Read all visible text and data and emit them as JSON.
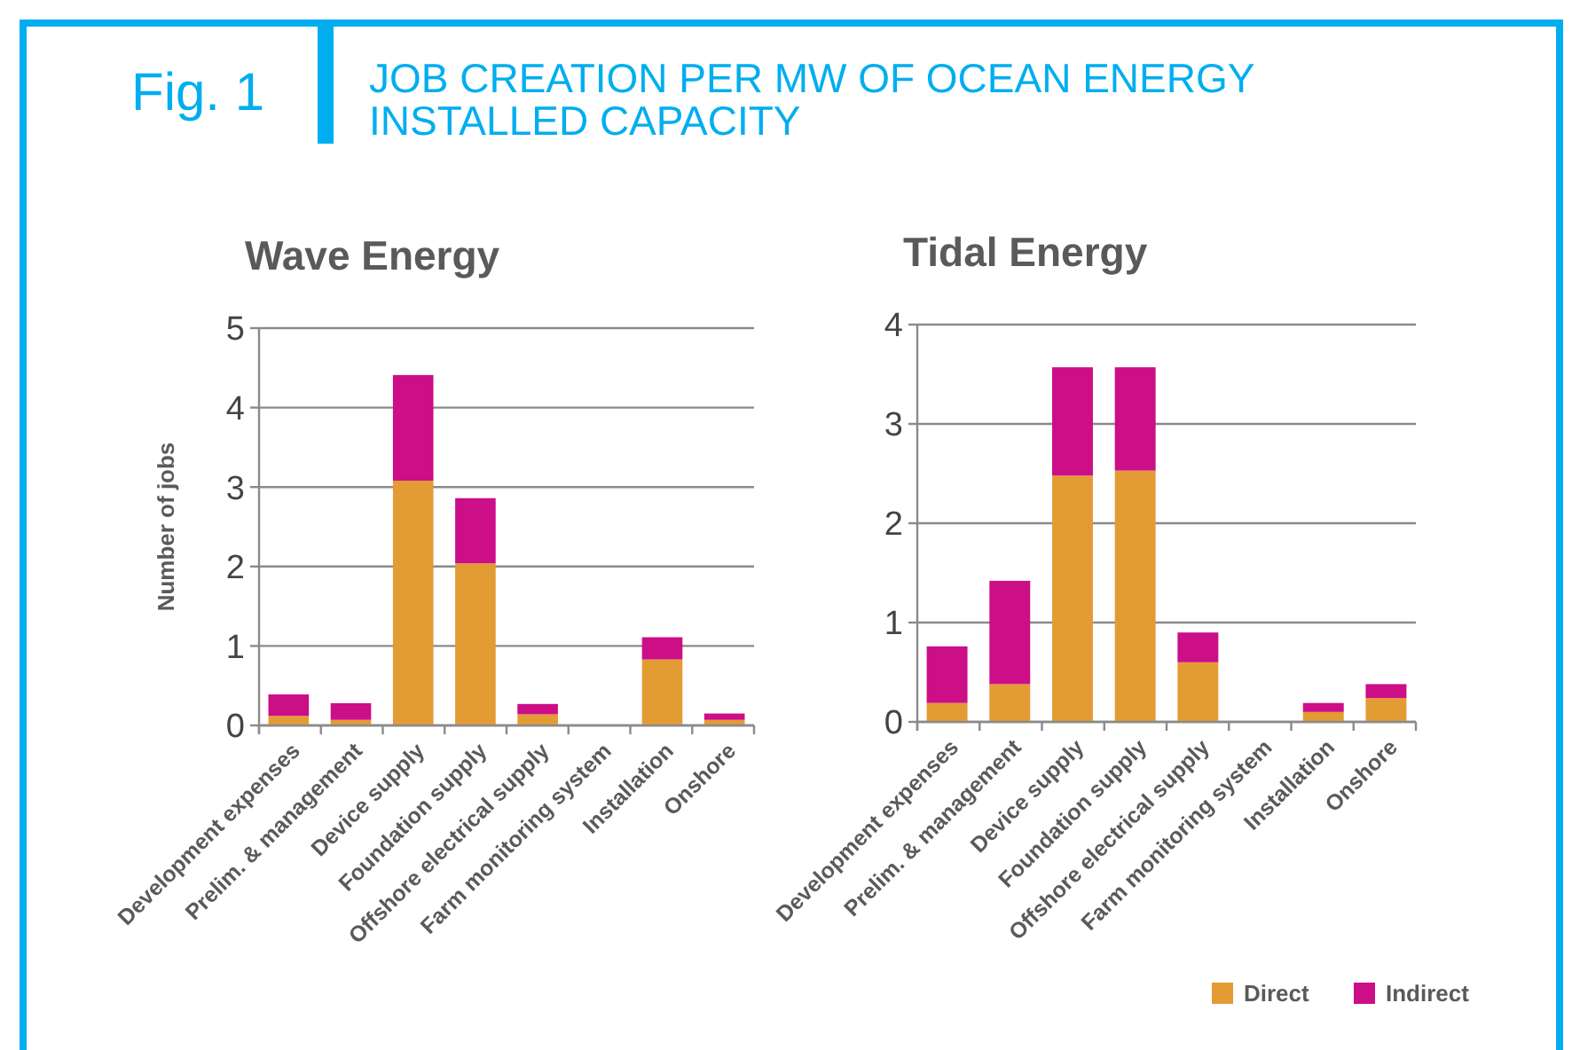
{
  "chart_data": [
    {
      "type": "bar",
      "title": "Wave Energy",
      "ylabel": "Number of jobs",
      "stacked": true,
      "grid": "y",
      "legend": false,
      "annotations": [
        "Fig. 1",
        "JOB CREATION PER MW OF OCEAN ENERGY INSTALLED CAPACITY"
      ],
      "categories": [
        "Development expenses",
        "Prelim. & management",
        "Device supply",
        "Foundation supply",
        "Offshore electrical supply",
        "Farm monitoring system",
        "Installation",
        "Onshore"
      ],
      "ylim": [
        0,
        5
      ],
      "yticks": [
        0,
        1,
        2,
        3,
        4,
        5
      ],
      "series": [
        {
          "color": "#e39b33",
          "values": [
            0.12,
            0.07,
            3.08,
            2.04,
            0.14,
            0,
            0.83,
            0.07
          ]
        },
        {
          "color": "#cc0e87",
          "values": [
            0.27,
            0.21,
            1.33,
            0.82,
            0.13,
            0,
            0.28,
            0.08
          ]
        }
      ]
    },
    {
      "type": "bar",
      "title": "Tidal Energy",
      "stacked": true,
      "grid": "y",
      "legend": "bottom right",
      "categories": [
        "Development expenses",
        "Prelim. & management",
        "Device supply",
        "Foundation supply",
        "Offshore electrical supply",
        "Farm monitoring system",
        "Installation",
        "Onshore"
      ],
      "ylim": [
        0,
        4
      ],
      "yticks": [
        0,
        1,
        2,
        3,
        4
      ],
      "series": [
        {
          "name": "Direct",
          "color": "#e39b33",
          "values": [
            0.19,
            0.38,
            2.48,
            2.53,
            0.6,
            0,
            0.1,
            0.24
          ]
        },
        {
          "name": "Indirect",
          "color": "#cc0e87",
          "values": [
            0.57,
            1.04,
            1.09,
            1.04,
            0.3,
            0,
            0.09,
            0.14
          ]
        }
      ]
    }
  ]
}
